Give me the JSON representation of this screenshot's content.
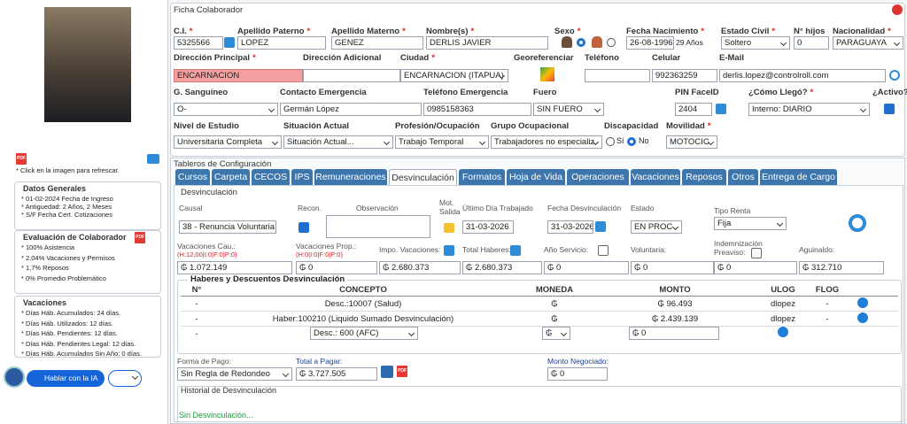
{
  "sidebar": {
    "refresh_note": "* Click en la imagen para refrescar.",
    "general": {
      "title": "Datos Generales",
      "items": [
        "* 01-02-2024 Fecha de Ingreso",
        "* Antiguedad: 2 Años, 2 Meses",
        "* S/F Fecha Cert. Cotizaciones"
      ]
    },
    "evaluacion": {
      "title": "Evaluación de Colaborador",
      "items": [
        "* 100% Asistencia",
        "* 2,04% Vacaciones y Permisos",
        "* 1,7% Reposos",
        "* 0% Promedio Problemático"
      ]
    },
    "vacaciones": {
      "title": "Vacaciones",
      "items": [
        "* Días Háb. Acumulados: 24 días.",
        "* Días Háb. Utilizados: 12 días.",
        "* Días Háb. Pendientes: 12 días.",
        "* Días Háb. Pendientes Legal: 12 días.",
        "* Días Háb. Acumulados Sin Año: 0 días."
      ]
    },
    "ia_button": "Hablar con la IA"
  },
  "icons": {
    "pdf": "PDF"
  },
  "ficha": {
    "title": "Ficha Colaborador",
    "fields": [
      {
        "label": "C.I.",
        "req": "*",
        "value": "5325566"
      },
      {
        "label": "Apellido Paterno",
        "req": "*",
        "value": "LOPEZ"
      },
      {
        "label": "Apellido Materno",
        "req": "*",
        "value": "GENEZ"
      },
      {
        "label": "Nombre(s)",
        "req": "*",
        "value": "DERLIS JAVIER"
      },
      {
        "label": "Sexo",
        "req": "*"
      },
      {
        "label": "Fecha Nacimiento",
        "req": "*",
        "value": "26-08-1996",
        "note": "29 Años"
      },
      {
        "label": "Estado Civil",
        "req": "*",
        "value": "Soltero"
      },
      {
        "label": "N° hijos",
        "value": "0"
      },
      {
        "label": "Nacionalidad",
        "req": "*",
        "value": "PARAGUAYA"
      },
      {
        "label": "Dirección Principal",
        "req": "*",
        "value": "ENCARNACION"
      },
      {
        "label": "Dirección Adicional"
      },
      {
        "label": "Ciudad",
        "req": "*",
        "value": "ENCARNACION (ITAPUA)"
      },
      {
        "label": "Georeferenciar"
      },
      {
        "label": "Teléfono"
      },
      {
        "label": "Celular",
        "value": "992363259"
      },
      {
        "label": "E-Mail",
        "value": "derlis.lopez@controlroll.com"
      },
      {
        "label": "G. Sanguíneo",
        "value": "O-"
      },
      {
        "label": "Contacto Emergencia",
        "value": "Germán López"
      },
      {
        "label": "Teléfono Emergencia",
        "value": "0985158363"
      },
      {
        "label": "Fuero",
        "value": "SIN FUERO"
      },
      {
        "label": "PIN FaceID",
        "value": "2404"
      },
      {
        "label": "¿Cómo Llegó?",
        "req": "*",
        "value": "Interno: DIARIO"
      },
      {
        "label": "¿Activo?",
        "req": "*"
      },
      {
        "label": "Nivel de Estudio",
        "value": "Universitaria Completa"
      },
      {
        "label": "Situación Actual",
        "value": "Situación Actual..."
      },
      {
        "label": "Profesión/Ocupación",
        "value": "Trabajo Temporal"
      },
      {
        "label": "Grupo Ocupacional",
        "value": "Trabajadores no especializ"
      },
      {
        "label": "Discapacidad",
        "options": [
          "Sí",
          "No"
        ]
      },
      {
        "label": "Movilidad",
        "req": "*",
        "value": "MOTOCIC"
      }
    ]
  },
  "tableros": {
    "title": "Tableros de Configuración",
    "tabs": [
      "Cursos",
      "Carpeta",
      "CECOS",
      "IPS",
      "Remuneraciones",
      "Desvinculación",
      "Formatos",
      "Hoja de Vida",
      "Operaciones",
      "Vacaciones",
      "Reposos",
      "Otros",
      "Entrega de Cargo"
    ]
  },
  "desvinculacion": {
    "title": "Desvinculación",
    "fields": [
      {
        "label": "Causal",
        "value": "38 - Renuncia Voluntaria"
      },
      {
        "label": "Recon."
      },
      {
        "label": "Observación"
      },
      {
        "label": "Mot. Salida"
      },
      {
        "label": "Último Día Trabajado",
        "value": "31-03-2026"
      },
      {
        "label": "Fecha Desvinculación",
        "value": "31-03-2026"
      },
      {
        "label": "Estado",
        "value": "EN PROC"
      },
      {
        "label": "Tipo Renta",
        "value": "Fija"
      },
      {
        "label": "Vacaciones Cau.:",
        "sub": "(H:12,00|I:0|F:0|P:0)",
        "value": "₲ 1.072.149"
      },
      {
        "label": "Vacaciones Prop.:",
        "sub": "(H:0|I:0|F:0|P:0)",
        "value": "₲ 0"
      },
      {
        "label": "Impo. Vacaciones:",
        "value": "₲ 2.680.373"
      },
      {
        "label": "Total Haberes:",
        "value": "₲ 2.680.373"
      },
      {
        "label": "Año Servicio:",
        "value": "₲ 0"
      },
      {
        "label": "Voluntaria:",
        "value": "₲ 0"
      },
      {
        "label": "Indemnización Preaviso:",
        "value": "₲ 0"
      },
      {
        "label": "Aguinaldo:",
        "value": "₲ 312.710"
      }
    ]
  },
  "haberes": {
    "title": "Haberes y Descuentos Desvinculación",
    "columns": [
      "N°",
      "CONCEPTO",
      "MONEDA",
      "MONTO",
      "ULOG",
      "FLOG"
    ],
    "rows": [
      [
        "-",
        "Desc.:10007 (Salud)",
        "₲",
        "₲ 96.493",
        "dlopez",
        "-"
      ],
      [
        "-",
        "Haber:100210 (Liquido Sumado Desvinculación)",
        "₲",
        "₲ 2.439.139",
        "dlopez",
        "-"
      ]
    ],
    "new_row": [
      "-",
      "Desc.: 600 (AFC)",
      "₲",
      "₲ 0"
    ]
  },
  "pago": {
    "fields": [
      {
        "label": "Forma de Pago:",
        "value": "Sin Regla de Redondeo"
      },
      {
        "label": "Total a Pagar:",
        "value": "₲ 3.727.505"
      },
      {
        "label": "Monto Negociado:",
        "value": "₲ 0"
      }
    ]
  },
  "historial": {
    "title": "Historial de Desvinculación",
    "status": "Sin Desvinculación..."
  }
}
